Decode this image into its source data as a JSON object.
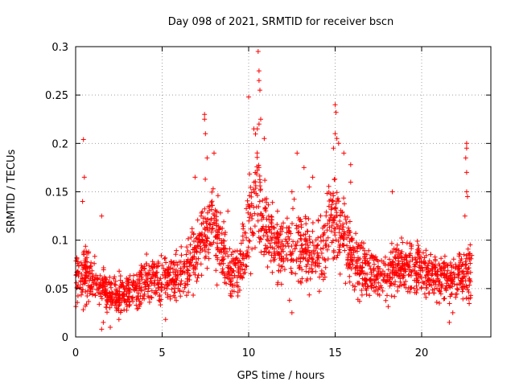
{
  "chart_data": {
    "type": "scatter",
    "title": "Day 098 of 2021, SRMTID for receiver bscn",
    "xlabel": "GPS time / hours",
    "ylabel": "SRMTID / TECUs",
    "xlim": [
      0,
      24
    ],
    "ylim": [
      0,
      0.3
    ],
    "xticks": [
      0,
      5,
      10,
      15,
      20
    ],
    "xtick_labels": [
      "0",
      "5",
      "10",
      "15",
      "20"
    ],
    "yticks": [
      0,
      0.05,
      0.1,
      0.15,
      0.2,
      0.25,
      0.3
    ],
    "ytick_labels": [
      "0",
      "0.05",
      "0.1",
      "0.15",
      "0.2",
      "0.25",
      "0.3"
    ],
    "grid": true,
    "marker": "plus",
    "series": [
      {
        "name": "SRMTID",
        "color": "#ff0000",
        "envelope_note": "values approximate, read from dense scatter",
        "profile": [
          [
            0.0,
            0.058,
            0.022
          ],
          [
            0.5,
            0.062,
            0.026
          ],
          [
            1.0,
            0.058,
            0.022
          ],
          [
            1.5,
            0.052,
            0.022
          ],
          [
            2.0,
            0.045,
            0.018
          ],
          [
            2.5,
            0.042,
            0.016
          ],
          [
            3.0,
            0.045,
            0.018
          ],
          [
            3.5,
            0.052,
            0.02
          ],
          [
            4.0,
            0.058,
            0.022
          ],
          [
            5.0,
            0.06,
            0.022
          ],
          [
            6.0,
            0.062,
            0.022
          ],
          [
            7.0,
            0.085,
            0.028
          ],
          [
            7.5,
            0.11,
            0.035
          ],
          [
            8.0,
            0.115,
            0.035
          ],
          [
            8.5,
            0.09,
            0.03
          ],
          [
            9.0,
            0.065,
            0.022
          ],
          [
            9.5,
            0.07,
            0.025
          ],
          [
            10.0,
            0.12,
            0.04
          ],
          [
            10.5,
            0.15,
            0.045
          ],
          [
            11.0,
            0.11,
            0.035
          ],
          [
            12.0,
            0.09,
            0.032
          ],
          [
            13.0,
            0.095,
            0.035
          ],
          [
            14.0,
            0.085,
            0.03
          ],
          [
            15.0,
            0.12,
            0.04
          ],
          [
            15.5,
            0.105,
            0.035
          ],
          [
            16.0,
            0.08,
            0.028
          ],
          [
            17.0,
            0.065,
            0.022
          ],
          [
            18.0,
            0.062,
            0.022
          ],
          [
            19.0,
            0.075,
            0.025
          ],
          [
            20.0,
            0.07,
            0.022
          ],
          [
            21.0,
            0.062,
            0.022
          ],
          [
            22.0,
            0.06,
            0.022
          ],
          [
            22.9,
            0.065,
            0.025
          ]
        ],
        "x_start": 0.0,
        "x_end": 22.9,
        "n_points": 2100,
        "spikes": [
          [
            0.45,
            0.204
          ],
          [
            0.5,
            0.165
          ],
          [
            0.4,
            0.14
          ],
          [
            1.5,
            0.125
          ],
          [
            7.45,
            0.23
          ],
          [
            7.45,
            0.225
          ],
          [
            7.5,
            0.21
          ],
          [
            7.6,
            0.185
          ],
          [
            6.9,
            0.165
          ],
          [
            8.0,
            0.19
          ],
          [
            10.0,
            0.248
          ],
          [
            10.55,
            0.295
          ],
          [
            10.6,
            0.275
          ],
          [
            10.6,
            0.265
          ],
          [
            10.65,
            0.255
          ],
          [
            10.7,
            0.225
          ],
          [
            10.6,
            0.22
          ],
          [
            10.5,
            0.215
          ],
          [
            10.3,
            0.215
          ],
          [
            10.9,
            0.205
          ],
          [
            12.8,
            0.19
          ],
          [
            13.2,
            0.175
          ],
          [
            13.7,
            0.165
          ],
          [
            15.0,
            0.24
          ],
          [
            15.05,
            0.232
          ],
          [
            15.0,
            0.21
          ],
          [
            15.1,
            0.205
          ],
          [
            14.9,
            0.195
          ],
          [
            15.2,
            0.2
          ],
          [
            15.5,
            0.19
          ],
          [
            15.9,
            0.178
          ],
          [
            15.9,
            0.16
          ],
          [
            18.3,
            0.15
          ],
          [
            22.6,
            0.2
          ],
          [
            22.6,
            0.195
          ],
          [
            22.55,
            0.185
          ],
          [
            22.6,
            0.17
          ],
          [
            22.6,
            0.15
          ],
          [
            22.65,
            0.145
          ],
          [
            22.5,
            0.125
          ],
          [
            8.8,
            0.13
          ],
          [
            12.5,
            0.15
          ],
          [
            13.5,
            0.155
          ]
        ],
        "lows": [
          [
            1.5,
            0.008
          ],
          [
            2.0,
            0.01
          ],
          [
            1.6,
            0.015
          ],
          [
            2.5,
            0.018
          ],
          [
            21.6,
            0.015
          ],
          [
            21.8,
            0.025
          ],
          [
            5.2,
            0.018
          ],
          [
            12.5,
            0.025
          ]
        ]
      }
    ]
  }
}
